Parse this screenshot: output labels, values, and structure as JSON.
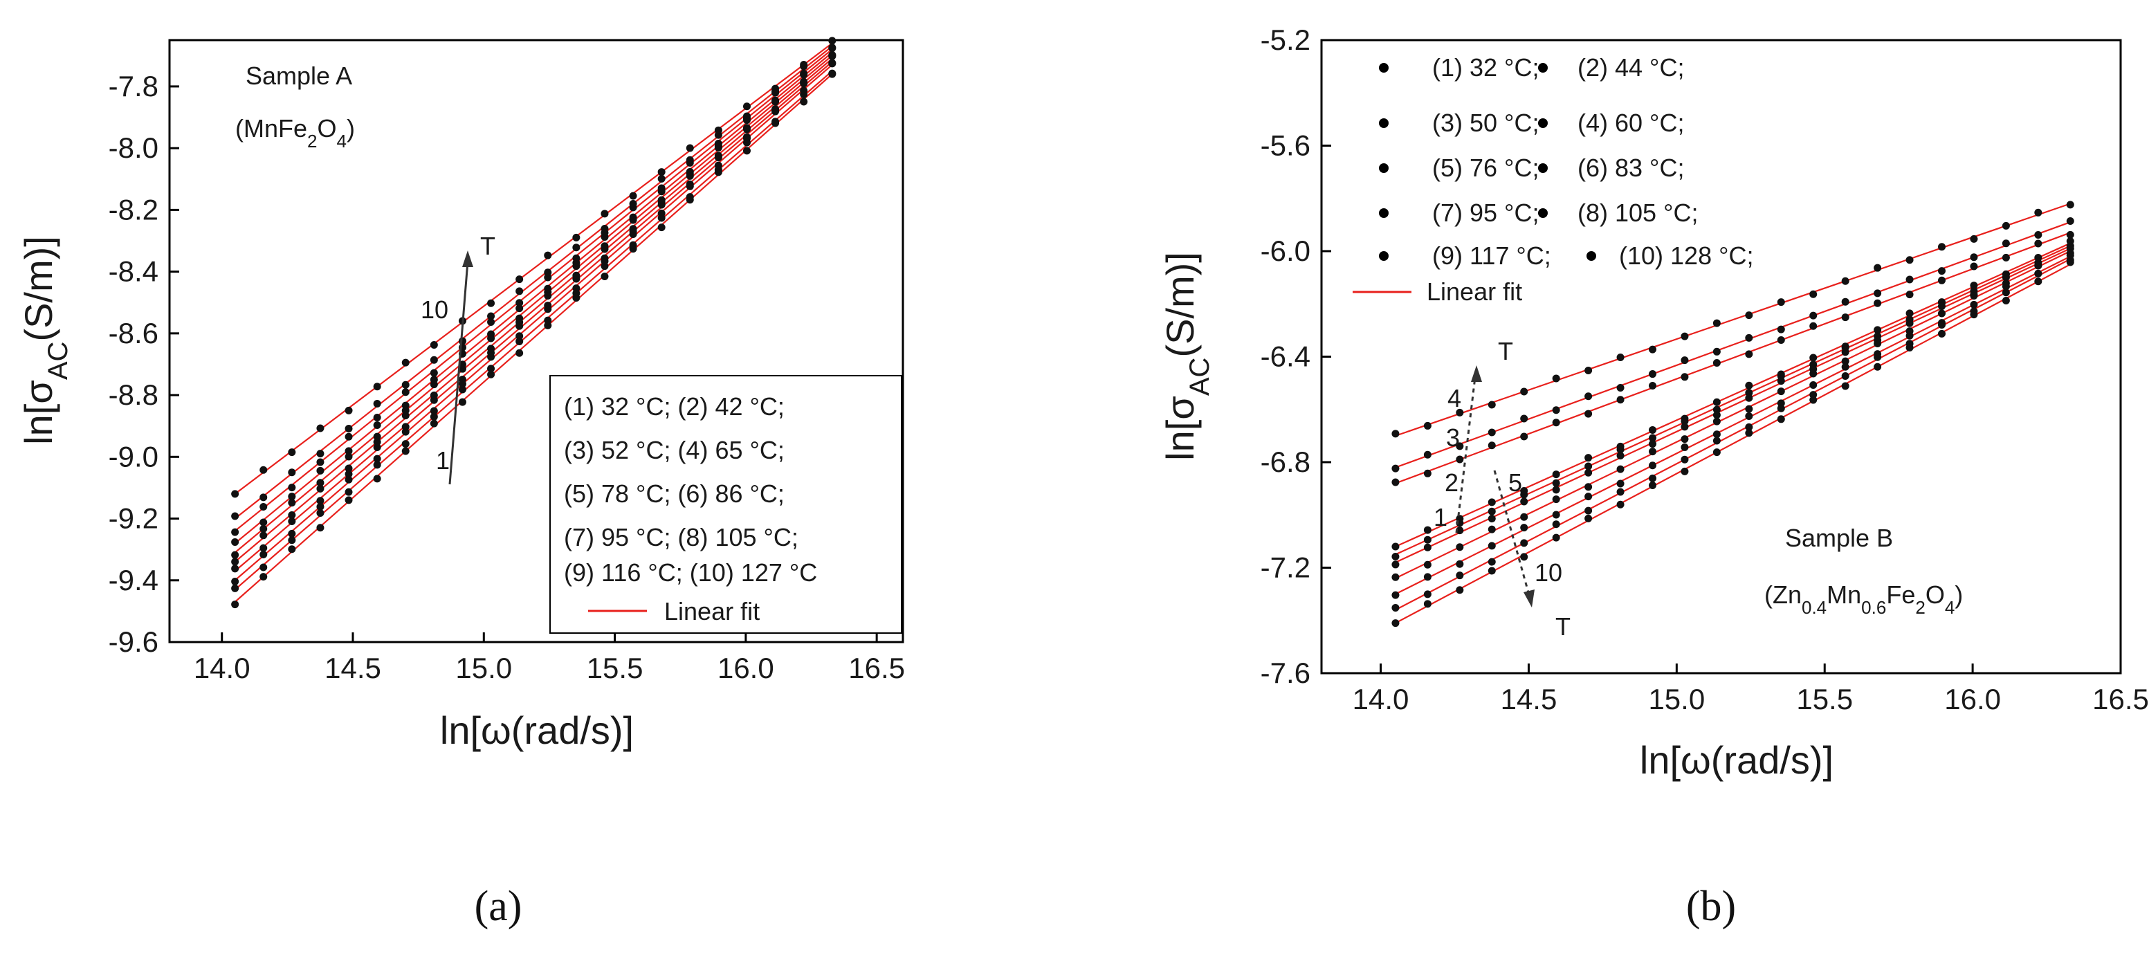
{
  "figure": {
    "captions": [
      "(a)",
      "(b)"
    ]
  },
  "chart_data": [
    {
      "id": "a",
      "type": "scatter",
      "title": "",
      "xlabel": "ln[ω(rad/s)]",
      "ylabel": "ln[σAC(S/m)]",
      "xlim": [
        13.8,
        16.6
      ],
      "ylim": [
        -9.6,
        -7.65
      ],
      "xticks": [
        "14.0",
        "14.5",
        "15.0",
        "15.5",
        "16.0",
        "16.5"
      ],
      "xtick_values": [
        14.0,
        14.5,
        15.0,
        15.5,
        16.0,
        16.5
      ],
      "yticks": [
        "-9.6",
        "-9.4",
        "-9.2",
        "-9.0",
        "-8.8",
        "-8.6",
        "-8.4",
        "-8.2",
        "-8.0",
        "-7.8"
      ],
      "ytick_values": [
        -9.6,
        -9.4,
        -9.2,
        -9.0,
        -8.8,
        -8.6,
        -8.4,
        -8.2,
        -8.0,
        -7.8
      ],
      "sample_label": "Sample A",
      "sample_formula": "(MnFe2O4)",
      "annotations": {
        "arrow_label": "T",
        "label_high": "10",
        "label_low": "1"
      },
      "legend_title_fit": "Linear fit",
      "legend": [
        "(1) 32 °C; (2) 42 °C;",
        "(3) 52 °C; (4) 65 °C;",
        "(5) 78 °C; (6) 86 °C;",
        "(7) 95 °C; (8) 105 °C;",
        "(9) 116 °C; (10) 127 °C"
      ],
      "legend_position": "bottom-right",
      "x_range": [
        14.05,
        16.33
      ],
      "points_per_series": 22,
      "series": [
        {
          "name": "(1) 32 °C",
          "y_start": -9.47,
          "y_end": -7.76
        },
        {
          "name": "(2) 42 °C",
          "y_start": -9.43,
          "y_end": -7.75
        },
        {
          "name": "(3) 52 °C",
          "y_start": -9.4,
          "y_end": -7.73
        },
        {
          "name": "(4) 65 °C",
          "y_start": -9.37,
          "y_end": -7.72
        },
        {
          "name": "(5) 78 °C",
          "y_start": -9.34,
          "y_end": -7.71
        },
        {
          "name": "(6) 86 °C",
          "y_start": -9.31,
          "y_end": -7.7
        },
        {
          "name": "(7) 95 °C",
          "y_start": -9.28,
          "y_end": -7.69
        },
        {
          "name": "(8) 105 °C",
          "y_start": -9.24,
          "y_end": -7.68
        },
        {
          "name": "(9) 116 °C",
          "y_start": -9.2,
          "y_end": -7.67
        },
        {
          "name": "(10) 127 °C",
          "y_start": -9.12,
          "y_end": -7.66
        }
      ]
    },
    {
      "id": "b",
      "type": "scatter",
      "title": "",
      "xlabel": "ln[ω(rad/s)]",
      "ylabel": "ln[σAC(S/m)]",
      "xlim": [
        13.8,
        16.5
      ],
      "ylim": [
        -7.6,
        -5.2
      ],
      "xticks": [
        "14.0",
        "14.5",
        "15.0",
        "15.5",
        "16.0",
        "16.5"
      ],
      "xtick_values": [
        14.0,
        14.5,
        15.0,
        15.5,
        16.0,
        16.5
      ],
      "yticks": [
        "-7.6",
        "-7.2",
        "-6.8",
        "-6.4",
        "-6.0",
        "-5.6",
        "-5.2"
      ],
      "ytick_values": [
        -7.6,
        -7.2,
        -6.8,
        -6.4,
        -6.0,
        -5.6,
        -5.2
      ],
      "sample_label": "Sample B",
      "sample_formula": "(Zn0.4Mn0.6Fe2O4)",
      "annotations": {
        "arrow_up_label": "T",
        "arrow_down_label": "T",
        "labels": [
          "4",
          "3",
          "2",
          "1",
          "5",
          "10"
        ]
      },
      "legend_title_fit": "Linear fit",
      "legend": [
        "(1) 32 °C;",
        "(2) 44 °C;",
        "(3) 50 °C;",
        "(4) 60 °C;",
        "(5) 76 °C;",
        "(6) 83 °C;",
        "(7) 95 °C;",
        "(8) 105 °C;",
        "(9) 117 °C;",
        "(10) 128 °C;"
      ],
      "legend_position": "top-left",
      "x_range": [
        14.05,
        16.33
      ],
      "points_per_series": 22,
      "series": [
        {
          "name": "(1) 32 °C",
          "y_start": -7.15,
          "y_end": -5.98
        },
        {
          "name": "(2) 44 °C",
          "y_start": -6.88,
          "y_end": -5.93
        },
        {
          "name": "(3) 50 °C",
          "y_start": -6.82,
          "y_end": -5.89
        },
        {
          "name": "(4) 60 °C",
          "y_start": -6.7,
          "y_end": -5.82
        },
        {
          "name": "(5) 76 °C",
          "y_start": -7.12,
          "y_end": -5.97
        },
        {
          "name": "(6) 83 °C",
          "y_start": -7.18,
          "y_end": -5.99
        },
        {
          "name": "(7) 95 °C",
          "y_start": -7.24,
          "y_end": -6.0
        },
        {
          "name": "(8) 105 °C",
          "y_start": -7.3,
          "y_end": -6.02
        },
        {
          "name": "(9) 117 °C",
          "y_start": -7.36,
          "y_end": -6.03
        },
        {
          "name": "(10) 128 °C",
          "y_start": -7.41,
          "y_end": -6.05
        }
      ]
    }
  ]
}
